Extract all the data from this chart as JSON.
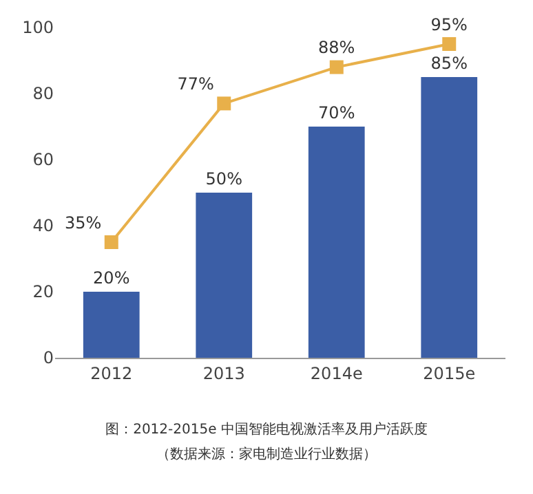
{
  "chart_data": {
    "type": "bar",
    "categories": [
      "2012",
      "2013",
      "2014e",
      "2015e"
    ],
    "series": [
      {
        "color": "#3b5ea6",
        "values": [
          20,
          50,
          70,
          85
        ],
        "value_labels": [
          "20%",
          "50%",
          "70%",
          "85%"
        ]
      },
      {
        "type": "line",
        "color": "#e8b04a",
        "values": [
          35,
          77,
          88,
          95
        ],
        "value_labels": [
          "35%",
          "77%",
          "88%",
          "95%"
        ],
        "marker": "square"
      }
    ],
    "ylim": [
      0,
      100
    ],
    "yticks": [
      0,
      20,
      40,
      60,
      80,
      100
    ],
    "grid": false,
    "legend": false,
    "annotations": [
      "图：2012-2015e 中国智能电视激活率及用户活跃度",
      "（数据来源：家电制造业行业数据）"
    ]
  }
}
